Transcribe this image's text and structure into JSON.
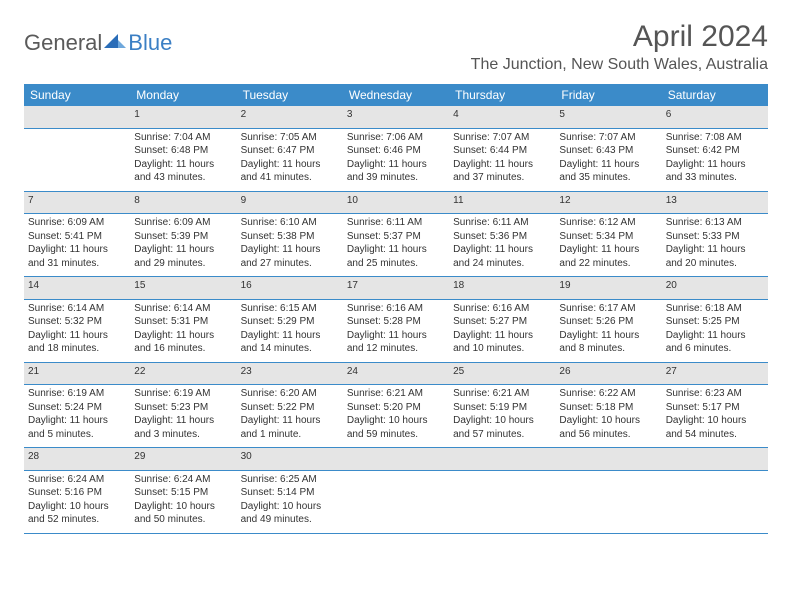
{
  "brand": {
    "general": "General",
    "blue": "Blue"
  },
  "title": "April 2024",
  "location": "The Junction, New South Wales, Australia",
  "headers": [
    "Sunday",
    "Monday",
    "Tuesday",
    "Wednesday",
    "Thursday",
    "Friday",
    "Saturday"
  ],
  "colors": {
    "header_bg": "#3b8bc9",
    "header_text": "#ffffff",
    "daynum_bg": "#e5e5e5",
    "border": "#3b8bc9",
    "text": "#333333",
    "brand_gray": "#5a5a5a",
    "brand_blue": "#3b7fc4"
  },
  "weeks": [
    {
      "nums": [
        "",
        "1",
        "2",
        "3",
        "4",
        "5",
        "6"
      ],
      "cells": [
        null,
        {
          "sunrise": "Sunrise: 7:04 AM",
          "sunset": "Sunset: 6:48 PM",
          "day1": "Daylight: 11 hours",
          "day2": "and 43 minutes."
        },
        {
          "sunrise": "Sunrise: 7:05 AM",
          "sunset": "Sunset: 6:47 PM",
          "day1": "Daylight: 11 hours",
          "day2": "and 41 minutes."
        },
        {
          "sunrise": "Sunrise: 7:06 AM",
          "sunset": "Sunset: 6:46 PM",
          "day1": "Daylight: 11 hours",
          "day2": "and 39 minutes."
        },
        {
          "sunrise": "Sunrise: 7:07 AM",
          "sunset": "Sunset: 6:44 PM",
          "day1": "Daylight: 11 hours",
          "day2": "and 37 minutes."
        },
        {
          "sunrise": "Sunrise: 7:07 AM",
          "sunset": "Sunset: 6:43 PM",
          "day1": "Daylight: 11 hours",
          "day2": "and 35 minutes."
        },
        {
          "sunrise": "Sunrise: 7:08 AM",
          "sunset": "Sunset: 6:42 PM",
          "day1": "Daylight: 11 hours",
          "day2": "and 33 minutes."
        }
      ]
    },
    {
      "nums": [
        "7",
        "8",
        "9",
        "10",
        "11",
        "12",
        "13"
      ],
      "cells": [
        {
          "sunrise": "Sunrise: 6:09 AM",
          "sunset": "Sunset: 5:41 PM",
          "day1": "Daylight: 11 hours",
          "day2": "and 31 minutes."
        },
        {
          "sunrise": "Sunrise: 6:09 AM",
          "sunset": "Sunset: 5:39 PM",
          "day1": "Daylight: 11 hours",
          "day2": "and 29 minutes."
        },
        {
          "sunrise": "Sunrise: 6:10 AM",
          "sunset": "Sunset: 5:38 PM",
          "day1": "Daylight: 11 hours",
          "day2": "and 27 minutes."
        },
        {
          "sunrise": "Sunrise: 6:11 AM",
          "sunset": "Sunset: 5:37 PM",
          "day1": "Daylight: 11 hours",
          "day2": "and 25 minutes."
        },
        {
          "sunrise": "Sunrise: 6:11 AM",
          "sunset": "Sunset: 5:36 PM",
          "day1": "Daylight: 11 hours",
          "day2": "and 24 minutes."
        },
        {
          "sunrise": "Sunrise: 6:12 AM",
          "sunset": "Sunset: 5:34 PM",
          "day1": "Daylight: 11 hours",
          "day2": "and 22 minutes."
        },
        {
          "sunrise": "Sunrise: 6:13 AM",
          "sunset": "Sunset: 5:33 PM",
          "day1": "Daylight: 11 hours",
          "day2": "and 20 minutes."
        }
      ]
    },
    {
      "nums": [
        "14",
        "15",
        "16",
        "17",
        "18",
        "19",
        "20"
      ],
      "cells": [
        {
          "sunrise": "Sunrise: 6:14 AM",
          "sunset": "Sunset: 5:32 PM",
          "day1": "Daylight: 11 hours",
          "day2": "and 18 minutes."
        },
        {
          "sunrise": "Sunrise: 6:14 AM",
          "sunset": "Sunset: 5:31 PM",
          "day1": "Daylight: 11 hours",
          "day2": "and 16 minutes."
        },
        {
          "sunrise": "Sunrise: 6:15 AM",
          "sunset": "Sunset: 5:29 PM",
          "day1": "Daylight: 11 hours",
          "day2": "and 14 minutes."
        },
        {
          "sunrise": "Sunrise: 6:16 AM",
          "sunset": "Sunset: 5:28 PM",
          "day1": "Daylight: 11 hours",
          "day2": "and 12 minutes."
        },
        {
          "sunrise": "Sunrise: 6:16 AM",
          "sunset": "Sunset: 5:27 PM",
          "day1": "Daylight: 11 hours",
          "day2": "and 10 minutes."
        },
        {
          "sunrise": "Sunrise: 6:17 AM",
          "sunset": "Sunset: 5:26 PM",
          "day1": "Daylight: 11 hours",
          "day2": "and 8 minutes."
        },
        {
          "sunrise": "Sunrise: 6:18 AM",
          "sunset": "Sunset: 5:25 PM",
          "day1": "Daylight: 11 hours",
          "day2": "and 6 minutes."
        }
      ]
    },
    {
      "nums": [
        "21",
        "22",
        "23",
        "24",
        "25",
        "26",
        "27"
      ],
      "cells": [
        {
          "sunrise": "Sunrise: 6:19 AM",
          "sunset": "Sunset: 5:24 PM",
          "day1": "Daylight: 11 hours",
          "day2": "and 5 minutes."
        },
        {
          "sunrise": "Sunrise: 6:19 AM",
          "sunset": "Sunset: 5:23 PM",
          "day1": "Daylight: 11 hours",
          "day2": "and 3 minutes."
        },
        {
          "sunrise": "Sunrise: 6:20 AM",
          "sunset": "Sunset: 5:22 PM",
          "day1": "Daylight: 11 hours",
          "day2": "and 1 minute."
        },
        {
          "sunrise": "Sunrise: 6:21 AM",
          "sunset": "Sunset: 5:20 PM",
          "day1": "Daylight: 10 hours",
          "day2": "and 59 minutes."
        },
        {
          "sunrise": "Sunrise: 6:21 AM",
          "sunset": "Sunset: 5:19 PM",
          "day1": "Daylight: 10 hours",
          "day2": "and 57 minutes."
        },
        {
          "sunrise": "Sunrise: 6:22 AM",
          "sunset": "Sunset: 5:18 PM",
          "day1": "Daylight: 10 hours",
          "day2": "and 56 minutes."
        },
        {
          "sunrise": "Sunrise: 6:23 AM",
          "sunset": "Sunset: 5:17 PM",
          "day1": "Daylight: 10 hours",
          "day2": "and 54 minutes."
        }
      ]
    },
    {
      "nums": [
        "28",
        "29",
        "30",
        "",
        "",
        "",
        ""
      ],
      "cells": [
        {
          "sunrise": "Sunrise: 6:24 AM",
          "sunset": "Sunset: 5:16 PM",
          "day1": "Daylight: 10 hours",
          "day2": "and 52 minutes."
        },
        {
          "sunrise": "Sunrise: 6:24 AM",
          "sunset": "Sunset: 5:15 PM",
          "day1": "Daylight: 10 hours",
          "day2": "and 50 minutes."
        },
        {
          "sunrise": "Sunrise: 6:25 AM",
          "sunset": "Sunset: 5:14 PM",
          "day1": "Daylight: 10 hours",
          "day2": "and 49 minutes."
        },
        null,
        null,
        null,
        null
      ]
    }
  ]
}
